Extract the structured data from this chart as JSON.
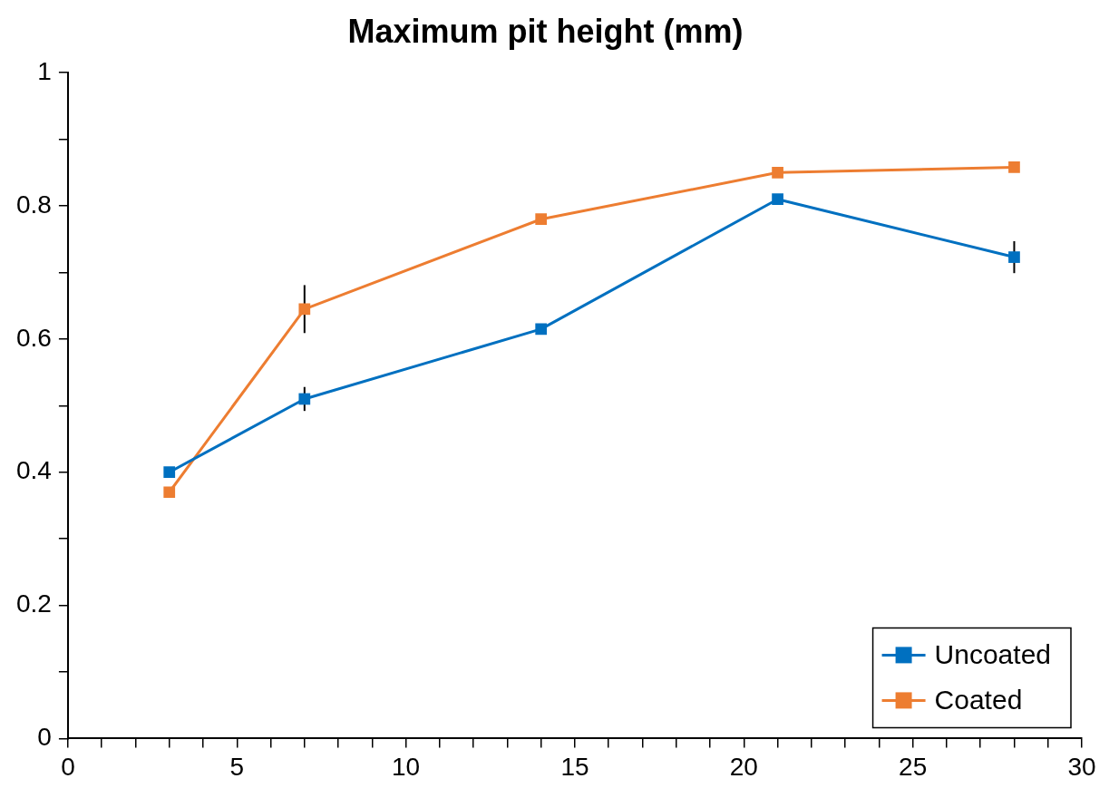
{
  "chart_data": {
    "type": "line",
    "title": "Maximum pit height (mm)",
    "x": [
      3,
      7,
      14,
      21,
      28
    ],
    "series": [
      {
        "name": "Uncoated",
        "color": "#0070c0",
        "values": [
          0.4,
          0.51,
          0.615,
          0.81,
          0.723
        ],
        "errors": [
          null,
          0.018,
          null,
          null,
          0.024
        ]
      },
      {
        "name": "Coated",
        "color": "#ed7d31",
        "values": [
          0.37,
          0.645,
          0.78,
          0.85,
          0.858
        ],
        "errors": [
          null,
          0.036,
          null,
          null,
          null
        ]
      }
    ],
    "xlim": [
      0,
      30
    ],
    "xticks": [
      0,
      {
        "value": 1,
        "label": null
      },
      {
        "value": 2,
        "label": null
      },
      {
        "value": 3,
        "label": null
      },
      {
        "value": 4,
        "label": null
      },
      5,
      {
        "value": 6,
        "label": null
      },
      {
        "value": 7,
        "label": null
      },
      {
        "value": 8,
        "label": null
      },
      {
        "value": 9,
        "label": null
      },
      10,
      {
        "value": 11,
        "label": null
      },
      {
        "value": 12,
        "label": null
      },
      {
        "value": 13,
        "label": null
      },
      {
        "value": 14,
        "label": null
      },
      15,
      {
        "value": 16,
        "label": null
      },
      {
        "value": 17,
        "label": null
      },
      {
        "value": 18,
        "label": null
      },
      {
        "value": 19,
        "label": null
      },
      20,
      {
        "value": 21,
        "label": null
      },
      {
        "value": 22,
        "label": null
      },
      {
        "value": 23,
        "label": null
      },
      {
        "value": 24,
        "label": null
      },
      25,
      {
        "value": 26,
        "label": null
      },
      {
        "value": 27,
        "label": null
      },
      {
        "value": 28,
        "label": null
      },
      {
        "value": 29,
        "label": null
      },
      30
    ],
    "ylim": [
      0,
      1
    ],
    "yticks": [
      0,
      {
        "value": 0.1,
        "label": null
      },
      0.2,
      {
        "value": 0.3,
        "label": null
      },
      0.4,
      {
        "value": 0.5,
        "label": null
      },
      0.6,
      {
        "value": 0.7,
        "label": null
      },
      0.8,
      {
        "value": 0.9,
        "label": null
      },
      1
    ],
    "grid": false,
    "legend": "bottom right",
    "marker": "square",
    "line_style": "solid"
  }
}
